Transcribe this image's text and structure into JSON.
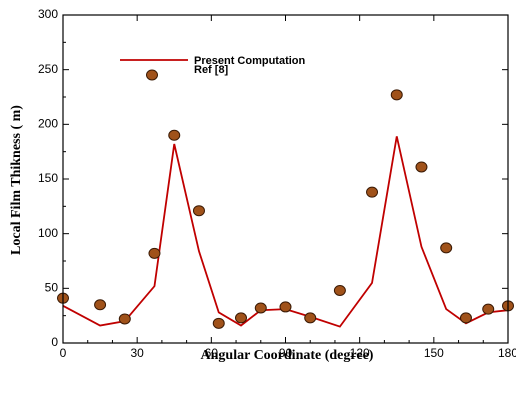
{
  "chart_data": {
    "type": "line",
    "xlabel": "Angular Coordinate (degree)",
    "ylabel": "Local Film Thikness (   m)",
    "xlim": [
      0,
      180
    ],
    "ylim": [
      0,
      300
    ],
    "xticks": [
      0,
      30,
      60,
      90,
      120,
      150,
      180
    ],
    "yticks": [
      0,
      50,
      100,
      150,
      200,
      250,
      300
    ],
    "legend_position": "top-left",
    "grid": false,
    "series": [
      {
        "name": "Present Computation",
        "kind": "line",
        "color": "#c00000",
        "x": [
          0,
          15,
          25,
          37,
          45,
          55,
          63,
          72,
          80,
          90,
          100,
          112,
          125,
          135,
          145,
          155,
          163,
          172,
          180
        ],
        "y": [
          34,
          16,
          20,
          52,
          182,
          84,
          28,
          16,
          30,
          31,
          24,
          15,
          55,
          189,
          88,
          31,
          18,
          28,
          30
        ]
      },
      {
        "name": "Ref [8]",
        "kind": "scatter",
        "color": "#a0521a",
        "x": [
          0,
          15,
          25,
          37,
          45,
          55,
          63,
          72,
          80,
          90,
          100,
          112,
          125,
          135,
          145,
          155,
          163,
          172,
          180
        ],
        "y": [
          41,
          35,
          22,
          82,
          190,
          121,
          18,
          23,
          32,
          33,
          23,
          48,
          138,
          227,
          161,
          87,
          23,
          31,
          34
        ]
      }
    ]
  }
}
